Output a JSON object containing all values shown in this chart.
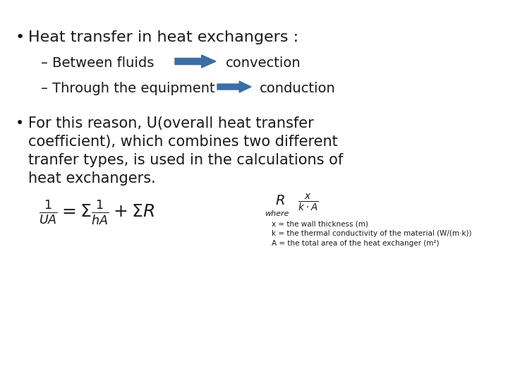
{
  "bg_color": "#ffffff",
  "bullet1": "Heat transfer in heat exchangers :",
  "sub1": "– Between fluids",
  "sub2": "– Through the equipment",
  "conv_label": "convection",
  "cond_label": "conduction",
  "bullet2_line1": "For this reason, U(overall heat transfer",
  "bullet2_line2": "coefficient), which combines two different",
  "bullet2_line3": "tranfer types, is used in the calculations of",
  "bullet2_line4": "heat exchangers.",
  "arrow_color": "#3b6ea5",
  "text_color": "#1a1a1a",
  "title_fontsize": 16,
  "sub_fontsize": 14,
  "body_fontsize": 15,
  "where_text": "where",
  "note1": "x = the wall thickness (m)",
  "note2": "k = the thermal conductivity of the material (W/(m·k))",
  "note3": "A = the total area of the heat exchanger (m²)"
}
